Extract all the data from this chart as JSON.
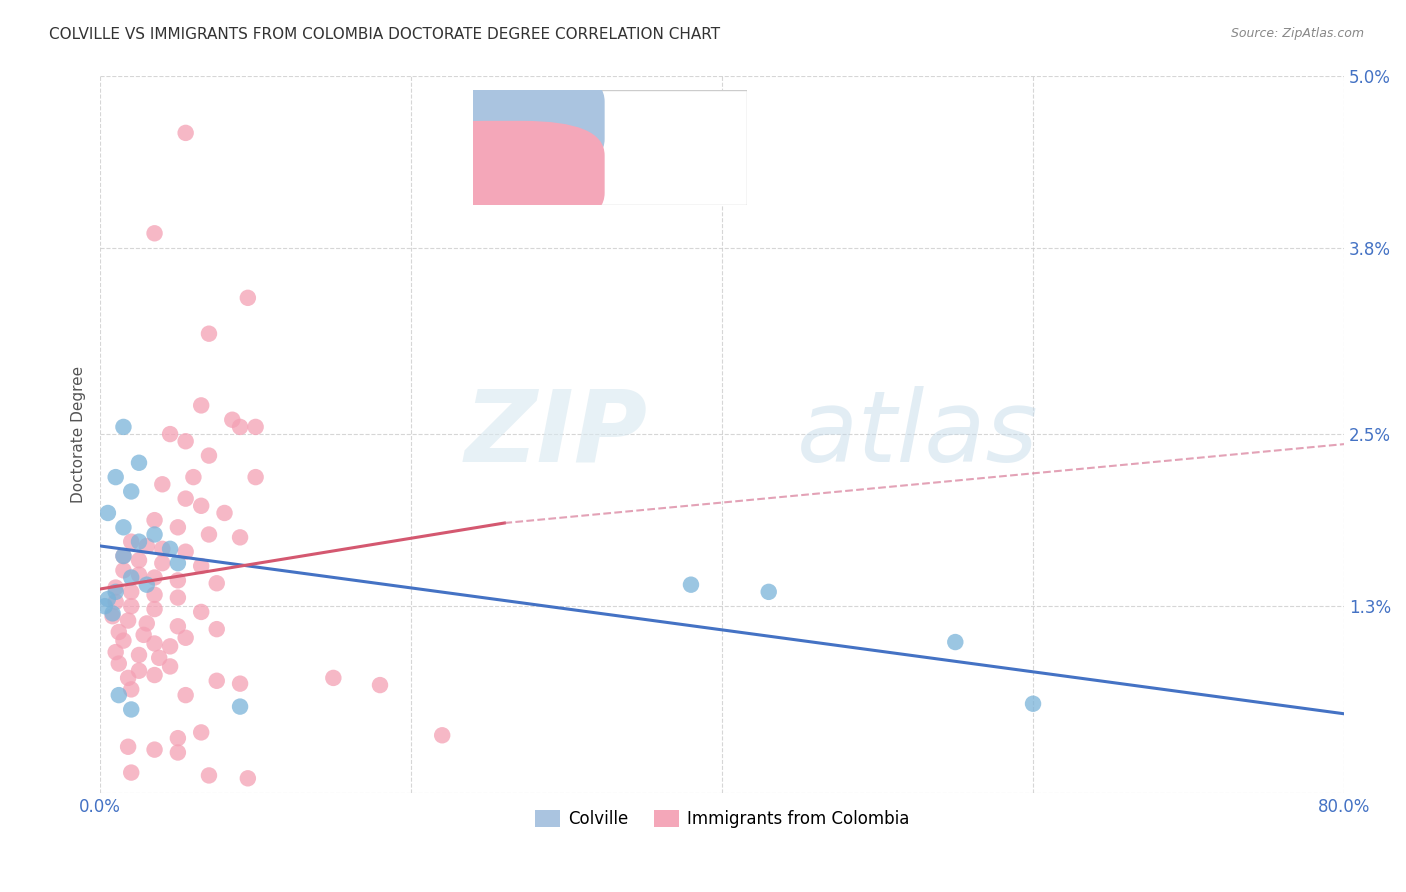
{
  "title": "COLVILLE VS IMMIGRANTS FROM COLOMBIA DOCTORATE DEGREE CORRELATION CHART",
  "source": "Source: ZipAtlas.com",
  "ylabel": "Doctorate Degree",
  "yticks": [
    0.0,
    1.3,
    2.5,
    3.8,
    5.0
  ],
  "ytick_labels": [
    "",
    "1.3%",
    "2.5%",
    "3.8%",
    "5.0%"
  ],
  "xtick_positions": [
    0,
    20,
    40,
    60,
    80
  ],
  "xtick_labels": [
    "0.0%",
    "",
    "",
    "",
    "80.0%"
  ],
  "blue_color": "#7ab3d9",
  "pink_color": "#f4a0b4",
  "blue_line_color": "#4472c4",
  "pink_line_color": "#d45870",
  "pink_dashed_color": "#d47090",
  "watermark_zip": "ZIP",
  "watermark_atlas": "atlas",
  "xmin": 0.0,
  "xmax": 80.0,
  "ymin": 0.0,
  "ymax": 5.0,
  "blue_points": [
    [
      1.5,
      2.55
    ],
    [
      2.5,
      2.3
    ],
    [
      1.0,
      2.2
    ],
    [
      2.0,
      2.1
    ],
    [
      0.5,
      1.95
    ],
    [
      1.5,
      1.85
    ],
    [
      3.5,
      1.8
    ],
    [
      2.5,
      1.75
    ],
    [
      4.5,
      1.7
    ],
    [
      1.5,
      1.65
    ],
    [
      5.0,
      1.6
    ],
    [
      2.0,
      1.5
    ],
    [
      3.0,
      1.45
    ],
    [
      1.0,
      1.4
    ],
    [
      0.5,
      1.35
    ],
    [
      0.3,
      1.3
    ],
    [
      0.8,
      1.25
    ],
    [
      38.0,
      1.45
    ],
    [
      43.0,
      1.4
    ],
    [
      55.0,
      1.05
    ],
    [
      60.0,
      0.62
    ],
    [
      1.2,
      0.68
    ],
    [
      2.0,
      0.58
    ],
    [
      9.0,
      0.6
    ]
  ],
  "pink_points": [
    [
      5.5,
      4.6
    ],
    [
      3.5,
      3.9
    ],
    [
      9.5,
      3.45
    ],
    [
      7.0,
      3.2
    ],
    [
      6.5,
      2.7
    ],
    [
      8.5,
      2.6
    ],
    [
      9.0,
      2.55
    ],
    [
      10.0,
      2.55
    ],
    [
      4.5,
      2.5
    ],
    [
      5.5,
      2.45
    ],
    [
      7.0,
      2.35
    ],
    [
      6.0,
      2.2
    ],
    [
      10.0,
      2.2
    ],
    [
      4.0,
      2.15
    ],
    [
      5.5,
      2.05
    ],
    [
      6.5,
      2.0
    ],
    [
      8.0,
      1.95
    ],
    [
      3.5,
      1.9
    ],
    [
      5.0,
      1.85
    ],
    [
      7.0,
      1.8
    ],
    [
      9.0,
      1.78
    ],
    [
      2.0,
      1.75
    ],
    [
      3.0,
      1.72
    ],
    [
      4.0,
      1.7
    ],
    [
      5.5,
      1.68
    ],
    [
      1.5,
      1.65
    ],
    [
      2.5,
      1.62
    ],
    [
      4.0,
      1.6
    ],
    [
      6.5,
      1.58
    ],
    [
      1.5,
      1.55
    ],
    [
      2.5,
      1.52
    ],
    [
      3.5,
      1.5
    ],
    [
      5.0,
      1.48
    ],
    [
      7.5,
      1.46
    ],
    [
      1.0,
      1.43
    ],
    [
      2.0,
      1.4
    ],
    [
      3.5,
      1.38
    ],
    [
      5.0,
      1.36
    ],
    [
      1.0,
      1.33
    ],
    [
      2.0,
      1.3
    ],
    [
      3.5,
      1.28
    ],
    [
      6.5,
      1.26
    ],
    [
      0.8,
      1.23
    ],
    [
      1.8,
      1.2
    ],
    [
      3.0,
      1.18
    ],
    [
      5.0,
      1.16
    ],
    [
      7.5,
      1.14
    ],
    [
      1.2,
      1.12
    ],
    [
      2.8,
      1.1
    ],
    [
      5.5,
      1.08
    ],
    [
      1.5,
      1.06
    ],
    [
      3.5,
      1.04
    ],
    [
      4.5,
      1.02
    ],
    [
      1.0,
      0.98
    ],
    [
      2.5,
      0.96
    ],
    [
      3.8,
      0.94
    ],
    [
      1.2,
      0.9
    ],
    [
      4.5,
      0.88
    ],
    [
      2.5,
      0.85
    ],
    [
      3.5,
      0.82
    ],
    [
      1.8,
      0.8
    ],
    [
      7.5,
      0.78
    ],
    [
      9.0,
      0.76
    ],
    [
      2.0,
      0.72
    ],
    [
      5.5,
      0.68
    ],
    [
      6.5,
      0.42
    ],
    [
      5.0,
      0.38
    ],
    [
      1.8,
      0.32
    ],
    [
      3.5,
      0.3
    ],
    [
      5.0,
      0.28
    ],
    [
      2.0,
      0.14
    ],
    [
      7.0,
      0.12
    ],
    [
      9.5,
      0.1
    ],
    [
      15.0,
      0.8
    ],
    [
      18.0,
      0.75
    ],
    [
      22.0,
      0.4
    ]
  ],
  "blue_line": {
    "x0": 0,
    "y0": 1.72,
    "x1": 80,
    "y1": 0.55
  },
  "pink_solid_line": {
    "x0": 0,
    "y0": 1.42,
    "x1": 26,
    "y1": 1.88
  },
  "pink_dashed_line": {
    "x0": 26,
    "y0": 1.88,
    "x1": 80,
    "y1": 2.43
  }
}
